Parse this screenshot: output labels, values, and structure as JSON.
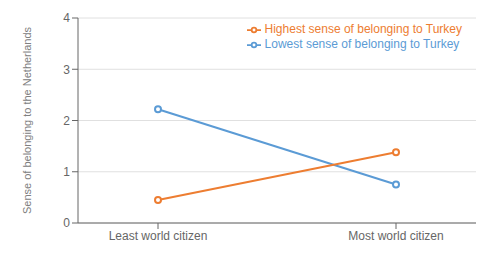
{
  "chart_data": {
    "type": "line",
    "categories": [
      "Least world citizen",
      "Most world citizen"
    ],
    "series": [
      {
        "name": "Lowest sense of belonging to Turkey",
        "color": "#5B9BD5",
        "values": [
          2.22,
          0.75
        ]
      },
      {
        "name": "Highest sense of belonging to Turkey",
        "color": "#ED7D31",
        "values": [
          0.45,
          1.38
        ]
      }
    ],
    "y_label": "Sense of belonging to the Netherlands",
    "ylim": [
      0,
      4
    ],
    "yticks": [
      0,
      1,
      2,
      3,
      4
    ],
    "grid": true,
    "legend": "upper right"
  }
}
